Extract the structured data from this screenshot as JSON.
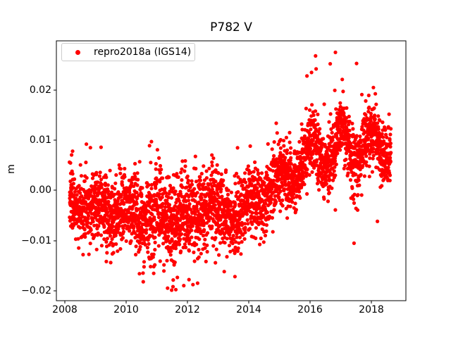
{
  "title": "P782 V",
  "ylabel": "m",
  "legend": {
    "label": "repro2018a (IGS14)",
    "marker_color": "#ff0000"
  },
  "colors": {
    "points": "#ff0000",
    "frame": "#000000",
    "background": "#ffffff",
    "legend_border": "#cccccc",
    "text": "#000000"
  },
  "chart_data": {
    "type": "scatter",
    "title": "P782 V",
    "xlabel": "",
    "ylabel": "m",
    "grid": false,
    "legend_entries": [
      "repro2018a (IGS14)"
    ],
    "legend_position": "upper left",
    "xlim": [
      2007.72,
      2019.13
    ],
    "ylim": [
      -0.022,
      0.0298
    ],
    "x_ticks": [
      2008,
      2010,
      2012,
      2014,
      2016,
      2018
    ],
    "x_tick_labels": [
      "2008",
      "2010",
      "2012",
      "2014",
      "2016",
      "2018"
    ],
    "y_ticks": [
      0.02,
      0.01,
      0.0,
      -0.01,
      -0.02
    ],
    "y_tick_labels": [
      "0.02",
      "0.01",
      "0.00",
      "−0.01",
      "−0.02"
    ],
    "series": [
      {
        "name": "repro2018a (IGS14)",
        "color": "#ff0000",
        "marker": "o",
        "marker_radius_px": 2.6,
        "n_points": 3400,
        "x_start": 2008.15,
        "x_end": 2018.64,
        "seed": 7,
        "trend": [
          [
            2008.15,
            -0.002
          ],
          [
            2008.7,
            -0.004
          ],
          [
            2009.2,
            -0.003
          ],
          [
            2009.7,
            -0.0045
          ],
          [
            2010.2,
            -0.003
          ],
          [
            2010.7,
            -0.005
          ],
          [
            2011.2,
            -0.0045
          ],
          [
            2011.7,
            -0.006
          ],
          [
            2012.2,
            -0.004
          ],
          [
            2012.7,
            -0.003
          ],
          [
            2013.2,
            -0.005
          ],
          [
            2013.7,
            -0.0045
          ],
          [
            2014.2,
            -0.002
          ],
          [
            2014.7,
            0.0005
          ],
          [
            2015.2,
            0.0025
          ],
          [
            2015.7,
            0.0055
          ],
          [
            2016.1,
            0.0085
          ],
          [
            2016.6,
            0.0065
          ],
          [
            2017.0,
            0.0105
          ],
          [
            2017.4,
            0.0075
          ],
          [
            2017.9,
            0.0095
          ],
          [
            2018.3,
            0.0085
          ],
          [
            2018.64,
            0.009
          ]
        ],
        "noise_std": [
          [
            2008.15,
            0.003
          ],
          [
            2010.0,
            0.0033
          ],
          [
            2011.0,
            0.0042
          ],
          [
            2012.5,
            0.004
          ],
          [
            2013.5,
            0.0036
          ],
          [
            2014.5,
            0.0032
          ],
          [
            2016.0,
            0.003
          ],
          [
            2018.64,
            0.003
          ]
        ],
        "seasonal": {
          "amplitude": [
            [
              2008.15,
              0.001
            ],
            [
              2013.0,
              0.0012
            ],
            [
              2015.0,
              0.0018
            ],
            [
              2016.0,
              0.0024
            ],
            [
              2018.64,
              0.0024
            ]
          ],
          "peak_phase": 0.0
        },
        "tails": {
          "prob": 0.05,
          "scale": 0.005,
          "down_bias_before": 2014.5,
          "down_prob": 0.8,
          "up_prob_after": 0.55
        },
        "clip": [
          -0.0199,
          0.0268
        ],
        "outliers": [
          [
            2016.83,
            0.0275
          ],
          [
            2017.52,
            0.0253
          ],
          [
            2016.2,
            0.0242
          ],
          [
            2016.05,
            0.0235
          ],
          [
            2015.9,
            0.0228
          ],
          [
            2008.25,
            0.0078
          ],
          [
            2008.7,
            0.0092
          ],
          [
            2008.83,
            0.0085
          ],
          [
            2010.76,
            0.0089
          ],
          [
            2010.44,
            0.0057
          ],
          [
            2012.8,
            0.0056
          ],
          [
            2011.35,
            -0.0195
          ],
          [
            2011.62,
            -0.0198
          ],
          [
            2011.88,
            -0.019
          ],
          [
            2012.33,
            -0.0185
          ],
          [
            2012.05,
            -0.0178
          ],
          [
            2013.2,
            -0.0162
          ],
          [
            2013.55,
            -0.0172
          ],
          [
            2010.55,
            -0.0165
          ],
          [
            2010.9,
            -0.0152
          ],
          [
            2009.35,
            -0.0142
          ],
          [
            2008.45,
            -0.0115
          ],
          [
            2018.2,
            -0.0062
          ]
        ]
      }
    ]
  }
}
